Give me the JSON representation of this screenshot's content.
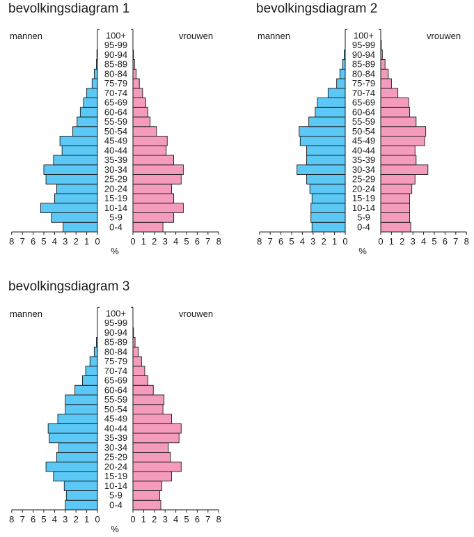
{
  "chart_data": [
    {
      "type": "bar",
      "title": "bevolkingsdiagram 1",
      "left_label": "mannen",
      "right_label": "vrouwen",
      "unit": "%",
      "xlim": [
        0,
        8
      ],
      "ticks": [
        "8",
        "7",
        "6",
        "5",
        "4",
        "3",
        "2",
        "1",
        "0"
      ],
      "ticks_right": [
        "0",
        "1",
        "2",
        "3",
        "4",
        "5",
        "6",
        "7",
        "8"
      ],
      "categories": [
        "0-4",
        "5-9",
        "10-14",
        "15-19",
        "20-24",
        "25-29",
        "30-34",
        "35-39",
        "40-44",
        "45-49",
        "50-54",
        "55-59",
        "60-64",
        "65-69",
        "70-74",
        "75-79",
        "80-84",
        "85-89",
        "90-94",
        "95-99",
        "100+"
      ],
      "series": [
        {
          "name": "mannen",
          "color": "#5bc8f5",
          "values": [
            3.2,
            4.3,
            5.3,
            4.0,
            3.8,
            4.8,
            5.0,
            4.1,
            3.3,
            3.5,
            2.3,
            1.9,
            1.6,
            1.3,
            1.0,
            0.5,
            0.3,
            0.1,
            0.05,
            0.0,
            0.0
          ]
        },
        {
          "name": "vrouwen",
          "color": "#f59bbe",
          "values": [
            2.8,
            3.8,
            4.7,
            3.8,
            3.6,
            4.5,
            4.7,
            3.8,
            3.1,
            3.2,
            2.2,
            1.6,
            1.4,
            1.2,
            0.9,
            0.6,
            0.3,
            0.15,
            0.05,
            0.0,
            0.0
          ]
        }
      ]
    },
    {
      "type": "bar",
      "title": "bevolkingsdiagram 2",
      "left_label": "mannen",
      "right_label": "vrouwen",
      "unit": "%",
      "xlim": [
        0,
        8
      ],
      "ticks": [
        "8",
        "7",
        "6",
        "5",
        "4",
        "3",
        "2",
        "1",
        "0"
      ],
      "ticks_right": [
        "0",
        "1",
        "2",
        "3",
        "4",
        "5",
        "6",
        "7",
        "8"
      ],
      "categories": [
        "0-4",
        "5-9",
        "10-14",
        "15-19",
        "20-24",
        "25-29",
        "30-34",
        "35-39",
        "40-44",
        "45-49",
        "50-54",
        "55-59",
        "60-64",
        "65-69",
        "70-74",
        "75-79",
        "80-84",
        "85-89",
        "90-94",
        "95-99",
        "100+"
      ],
      "series": [
        {
          "name": "mannen",
          "color": "#5bc8f5",
          "values": [
            3.1,
            3.2,
            3.2,
            3.1,
            3.3,
            3.6,
            4.5,
            3.6,
            3.6,
            4.2,
            4.3,
            3.4,
            2.8,
            2.6,
            1.6,
            0.8,
            0.5,
            0.25,
            0.1,
            0.0,
            0.0
          ]
        },
        {
          "name": "vrouwen",
          "color": "#f59bbe",
          "values": [
            2.8,
            2.7,
            2.7,
            2.7,
            2.9,
            3.2,
            4.4,
            3.3,
            3.2,
            4.1,
            4.2,
            3.3,
            2.7,
            2.6,
            1.6,
            1.0,
            0.7,
            0.4,
            0.15,
            0.05,
            0.0
          ]
        }
      ]
    },
    {
      "type": "bar",
      "title": "bevolkingsdiagram 3",
      "left_label": "mannen",
      "right_label": "vrouwen",
      "unit": "%",
      "xlim": [
        0,
        8
      ],
      "ticks": [
        "8",
        "7",
        "6",
        "5",
        "4",
        "3",
        "2",
        "1",
        "0"
      ],
      "ticks_right": [
        "0",
        "1",
        "2",
        "3",
        "4",
        "5",
        "6",
        "7",
        "8"
      ],
      "categories": [
        "0-4",
        "5-9",
        "10-14",
        "15-19",
        "20-24",
        "25-29",
        "30-34",
        "35-39",
        "40-44",
        "45-49",
        "50-54",
        "55-59",
        "60-64",
        "65-69",
        "70-74",
        "75-79",
        "80-84",
        "85-89",
        "90-94",
        "95-99",
        "100+"
      ],
      "series": [
        {
          "name": "mannen",
          "color": "#5bc8f5",
          "values": [
            3.0,
            2.9,
            3.1,
            4.1,
            4.8,
            3.8,
            3.6,
            4.5,
            4.6,
            3.7,
            3.0,
            3.0,
            2.1,
            1.4,
            1.1,
            0.7,
            0.3,
            0.1,
            0.0,
            0.0,
            0.0
          ]
        },
        {
          "name": "vrouwen",
          "color": "#f59bbe",
          "values": [
            2.6,
            2.5,
            2.7,
            3.6,
            4.5,
            3.5,
            3.3,
            4.3,
            4.5,
            3.6,
            2.8,
            2.9,
            1.9,
            1.4,
            1.1,
            0.8,
            0.5,
            0.2,
            0.05,
            0.0,
            0.0
          ]
        }
      ]
    }
  ]
}
